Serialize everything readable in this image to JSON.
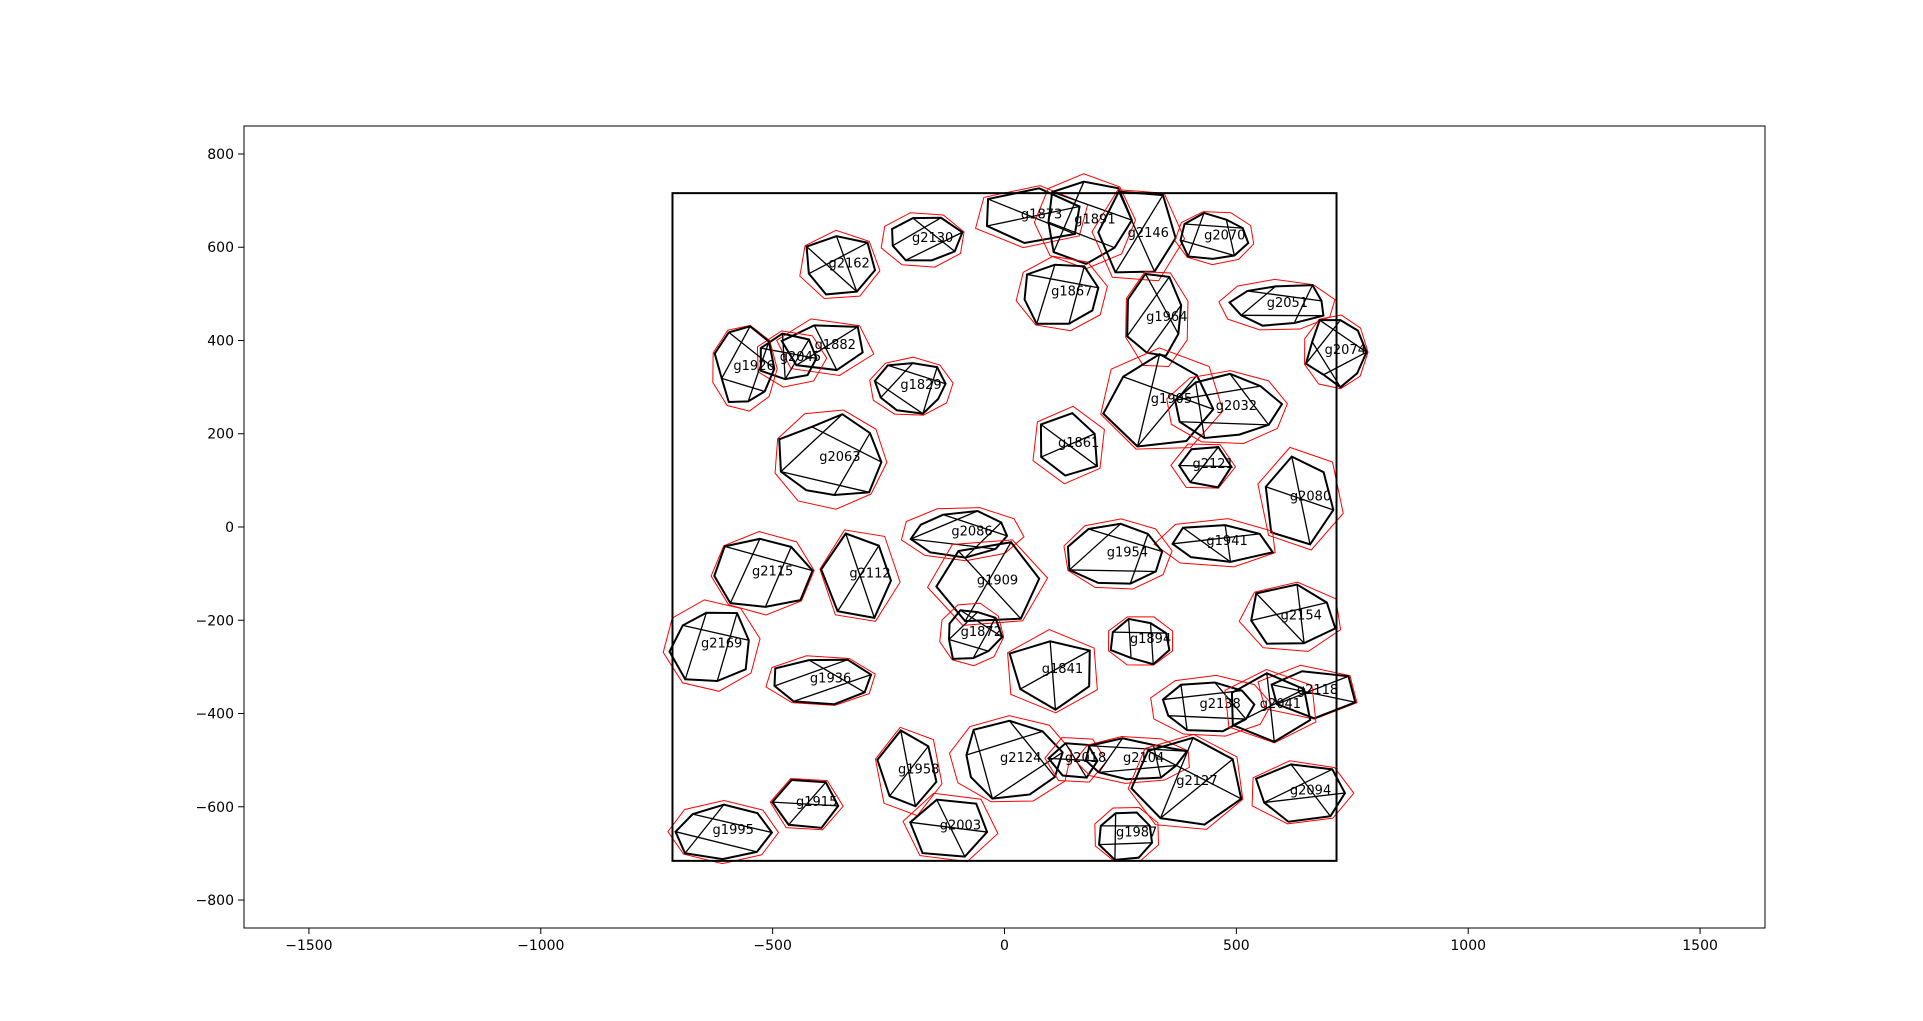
{
  "chart_data": {
    "type": "scatter",
    "title": "",
    "xlabel": "",
    "ylabel": "",
    "xlim": [
      -1640,
      1640
    ],
    "ylim": [
      -860,
      860
    ],
    "xticks": [
      -1500,
      -1000,
      -500,
      0,
      500,
      1000,
      1500
    ],
    "yticks": [
      800,
      600,
      400,
      200,
      0,
      -200,
      -400,
      -600,
      -800
    ],
    "xtick_labels": [
      "−1500",
      "−1000",
      "−500",
      "0",
      "500",
      "1000",
      "1500"
    ],
    "ytick_labels": [
      "800",
      "600",
      "400",
      "200",
      "0",
      "−200",
      "−400",
      "−600",
      "−800"
    ],
    "grid": false,
    "legend": "none",
    "colors": {
      "piece_outline": "#000000",
      "hull": "#ff0000",
      "board": "#000000"
    },
    "board": {
      "x0": -716,
      "x1": 716,
      "y0": -716,
      "y1": 716
    },
    "pieces": [
      {
        "id": "g1873",
        "x": 80,
        "y": 670
      },
      {
        "id": "g1891",
        "x": 195,
        "y": 660
      },
      {
        "id": "g2146",
        "x": 310,
        "y": 630
      },
      {
        "id": "g2070",
        "x": 475,
        "y": 625
      },
      {
        "id": "g2130",
        "x": -155,
        "y": 620
      },
      {
        "id": "g2162",
        "x": -335,
        "y": 565
      },
      {
        "id": "g1867",
        "x": 145,
        "y": 505
      },
      {
        "id": "g2051",
        "x": 610,
        "y": 480
      },
      {
        "id": "g1964",
        "x": 350,
        "y": 450
      },
      {
        "id": "g1882",
        "x": -365,
        "y": 390
      },
      {
        "id": "g2074",
        "x": 735,
        "y": 380
      },
      {
        "id": "g2045",
        "x": -440,
        "y": 365
      },
      {
        "id": "g1926",
        "x": -540,
        "y": 345
      },
      {
        "id": "g1829",
        "x": -180,
        "y": 305
      },
      {
        "id": "g1905",
        "x": 360,
        "y": 275
      },
      {
        "id": "g2032",
        "x": 500,
        "y": 260
      },
      {
        "id": "g1861",
        "x": 160,
        "y": 180
      },
      {
        "id": "g2063",
        "x": -355,
        "y": 150
      },
      {
        "id": "g2121",
        "x": 450,
        "y": 135
      },
      {
        "id": "g2080",
        "x": 660,
        "y": 65
      },
      {
        "id": "g2086",
        "x": -70,
        "y": -10
      },
      {
        "id": "g1941",
        "x": 480,
        "y": -30
      },
      {
        "id": "g1954",
        "x": 265,
        "y": -55
      },
      {
        "id": "g2115",
        "x": -500,
        "y": -95
      },
      {
        "id": "g2112",
        "x": -290,
        "y": -100
      },
      {
        "id": "g1909",
        "x": -15,
        "y": -115
      },
      {
        "id": "g2154",
        "x": 640,
        "y": -190
      },
      {
        "id": "g1872",
        "x": -50,
        "y": -225
      },
      {
        "id": "g1894",
        "x": 315,
        "y": -240
      },
      {
        "id": "g2169",
        "x": -610,
        "y": -250
      },
      {
        "id": "g1841",
        "x": 125,
        "y": -305
      },
      {
        "id": "g1936",
        "x": -375,
        "y": -325
      },
      {
        "id": "g2118",
        "x": 675,
        "y": -350
      },
      {
        "id": "g2138",
        "x": 465,
        "y": -380
      },
      {
        "id": "g2041",
        "x": 595,
        "y": -380
      },
      {
        "id": "g2124",
        "x": 35,
        "y": -495
      },
      {
        "id": "g2018",
        "x": 175,
        "y": -495
      },
      {
        "id": "g2104",
        "x": 300,
        "y": -495
      },
      {
        "id": "g1958",
        "x": -185,
        "y": -520
      },
      {
        "id": "g2127",
        "x": 415,
        "y": -545
      },
      {
        "id": "g2094",
        "x": 660,
        "y": -565
      },
      {
        "id": "g1915",
        "x": -405,
        "y": -590
      },
      {
        "id": "g2003",
        "x": -95,
        "y": -640
      },
      {
        "id": "g1995",
        "x": -585,
        "y": -650
      },
      {
        "id": "g1987",
        "x": 285,
        "y": -655
      }
    ]
  }
}
